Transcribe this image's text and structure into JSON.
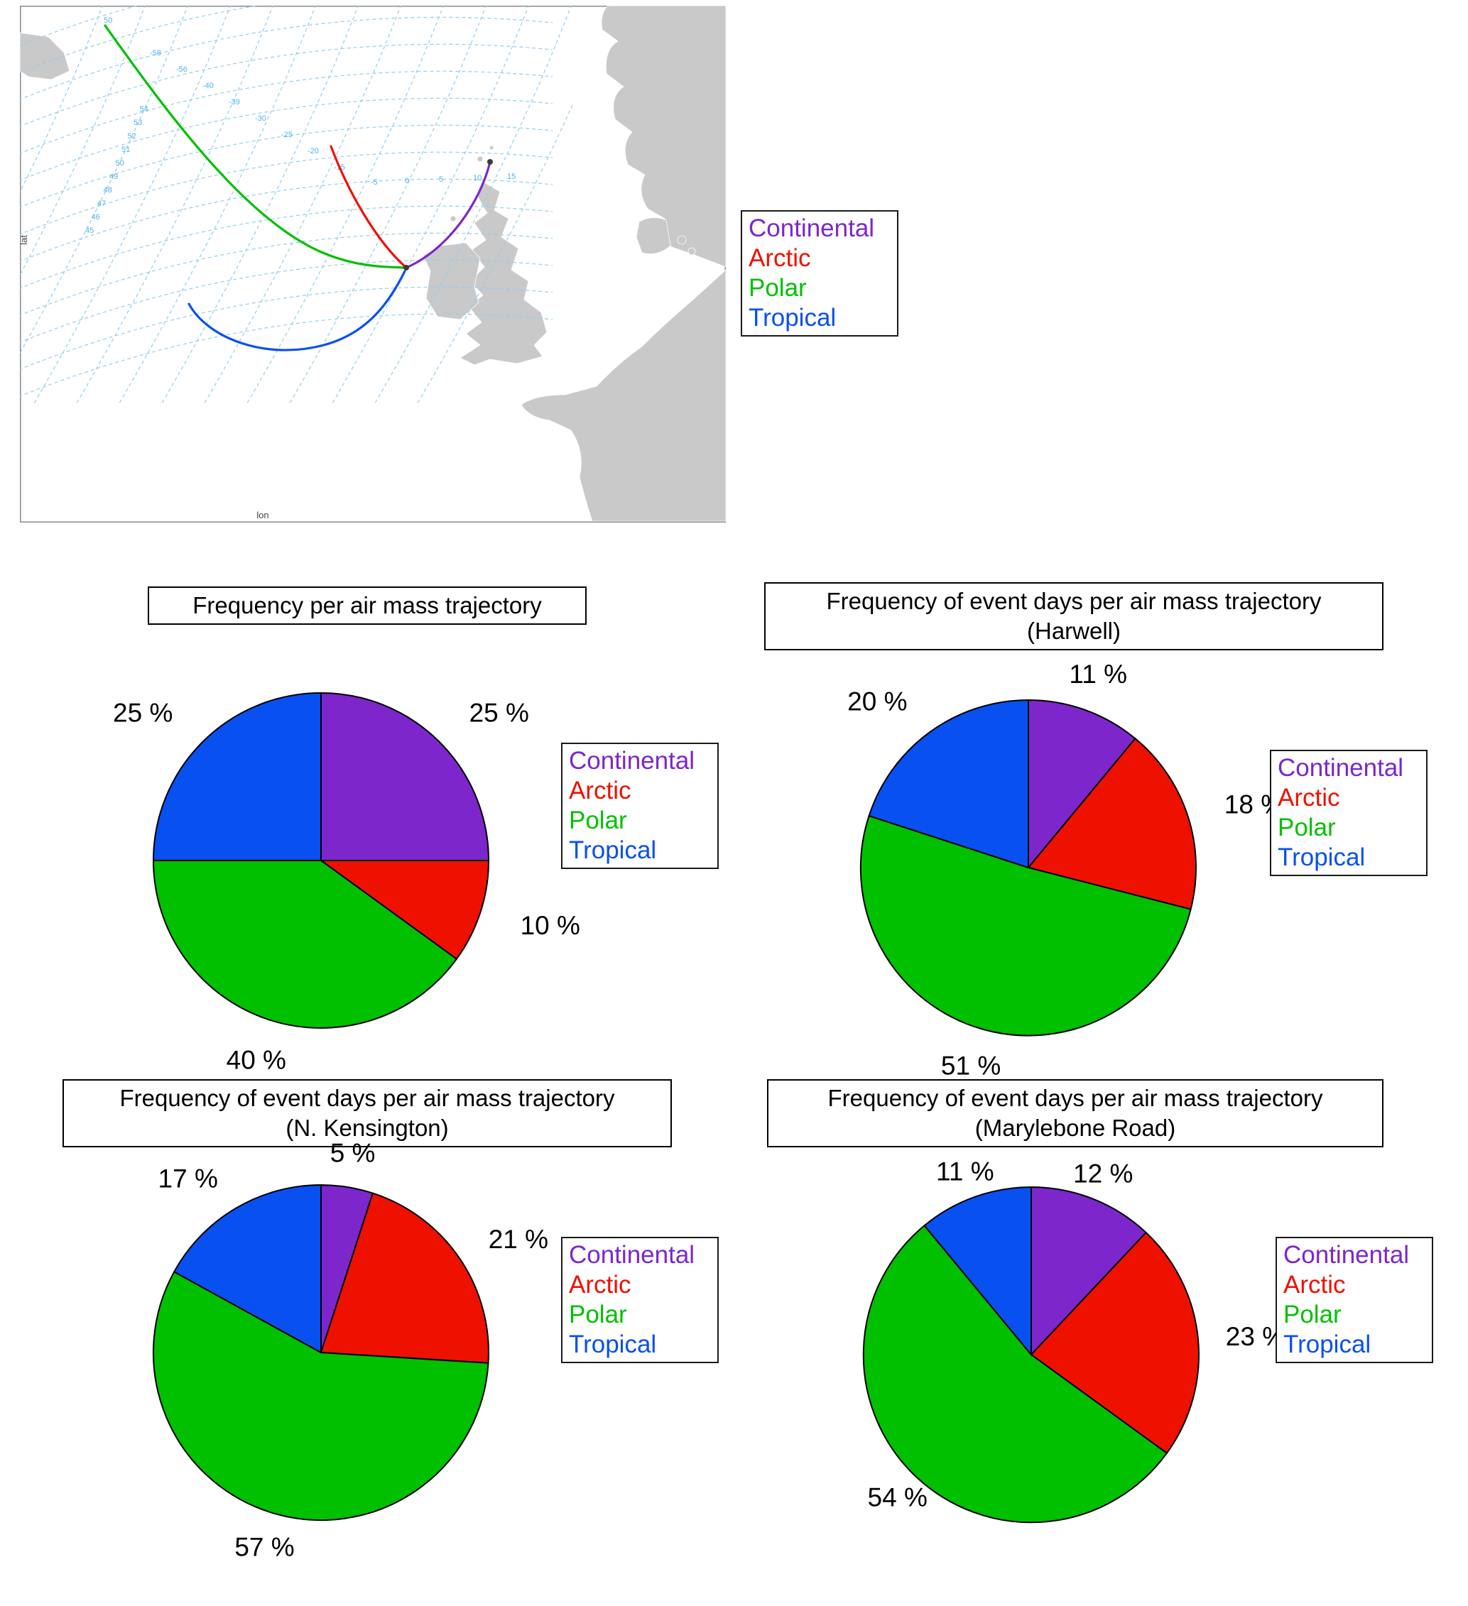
{
  "colors": {
    "continental": "#7C26CC",
    "arctic": "#EE1100",
    "polar": "#00C000",
    "tropical": "#0850F0"
  },
  "legend": {
    "items": [
      {
        "label": "Continental",
        "color_key": "continental"
      },
      {
        "label": "Arctic",
        "color_key": "arctic"
      },
      {
        "label": "Polar",
        "color_key": "polar"
      },
      {
        "label": "Tropical",
        "color_key": "tropical"
      }
    ]
  },
  "map": {
    "xlabel": "lon",
    "ylabel": "lat",
    "trajectories": [
      {
        "name": "Polar",
        "color_key": "polar"
      },
      {
        "name": "Arctic",
        "color_key": "arctic"
      },
      {
        "name": "Continental",
        "color_key": "continental"
      },
      {
        "name": "Tropical",
        "color_key": "tropical"
      }
    ],
    "graticule_lat_labels": [
      "45",
      "46",
      "47",
      "48",
      "49",
      "50",
      "51",
      "52",
      "53",
      "54"
    ],
    "graticule_lon_labels": [
      "-58",
      "-56",
      "-40",
      "-39",
      "-30",
      "-25",
      "-20",
      "-15"
    ],
    "graticule_lon_labels_east": [
      "-5",
      "0",
      "5",
      "10",
      "15"
    ],
    "origin_label": "50"
  },
  "chart_data": [
    {
      "type": "pie",
      "title": "Frequency per air mass trajectory",
      "subtitle": "",
      "categories": [
        "Continental",
        "Arctic",
        "Polar",
        "Tropical"
      ],
      "values": [
        25,
        10,
        40,
        25
      ],
      "unit": "%",
      "colors": [
        "#7C26CC",
        "#EE1100",
        "#00C000",
        "#0850F0"
      ],
      "start_angle": "top",
      "direction": "clockwise",
      "legend_position": "right"
    },
    {
      "type": "pie",
      "title": "Frequency of event days per air mass trajectory",
      "subtitle": "(Harwell)",
      "categories": [
        "Continental",
        "Arctic",
        "Polar",
        "Tropical"
      ],
      "values": [
        11,
        18,
        51,
        20
      ],
      "unit": "%",
      "colors": [
        "#7C26CC",
        "#EE1100",
        "#00C000",
        "#0850F0"
      ],
      "start_angle": "top",
      "direction": "clockwise",
      "legend_position": "right"
    },
    {
      "type": "pie",
      "title": "Frequency of event days per air mass trajectory",
      "subtitle": "(N. Kensington)",
      "categories": [
        "Continental",
        "Arctic",
        "Polar",
        "Tropical"
      ],
      "values": [
        5,
        21,
        57,
        17
      ],
      "unit": "%",
      "colors": [
        "#7C26CC",
        "#EE1100",
        "#00C000",
        "#0850F0"
      ],
      "start_angle": "top",
      "direction": "clockwise",
      "legend_position": "right"
    },
    {
      "type": "pie",
      "title": "Frequency of event days per air mass trajectory",
      "subtitle": "(Marylebone Road)",
      "categories": [
        "Continental",
        "Arctic",
        "Polar",
        "Tropical"
      ],
      "values": [
        12,
        23,
        54,
        11
      ],
      "unit": "%",
      "colors": [
        "#7C26CC",
        "#EE1100",
        "#00C000",
        "#0850F0"
      ],
      "start_angle": "top",
      "direction": "clockwise",
      "legend_position": "right"
    }
  ]
}
